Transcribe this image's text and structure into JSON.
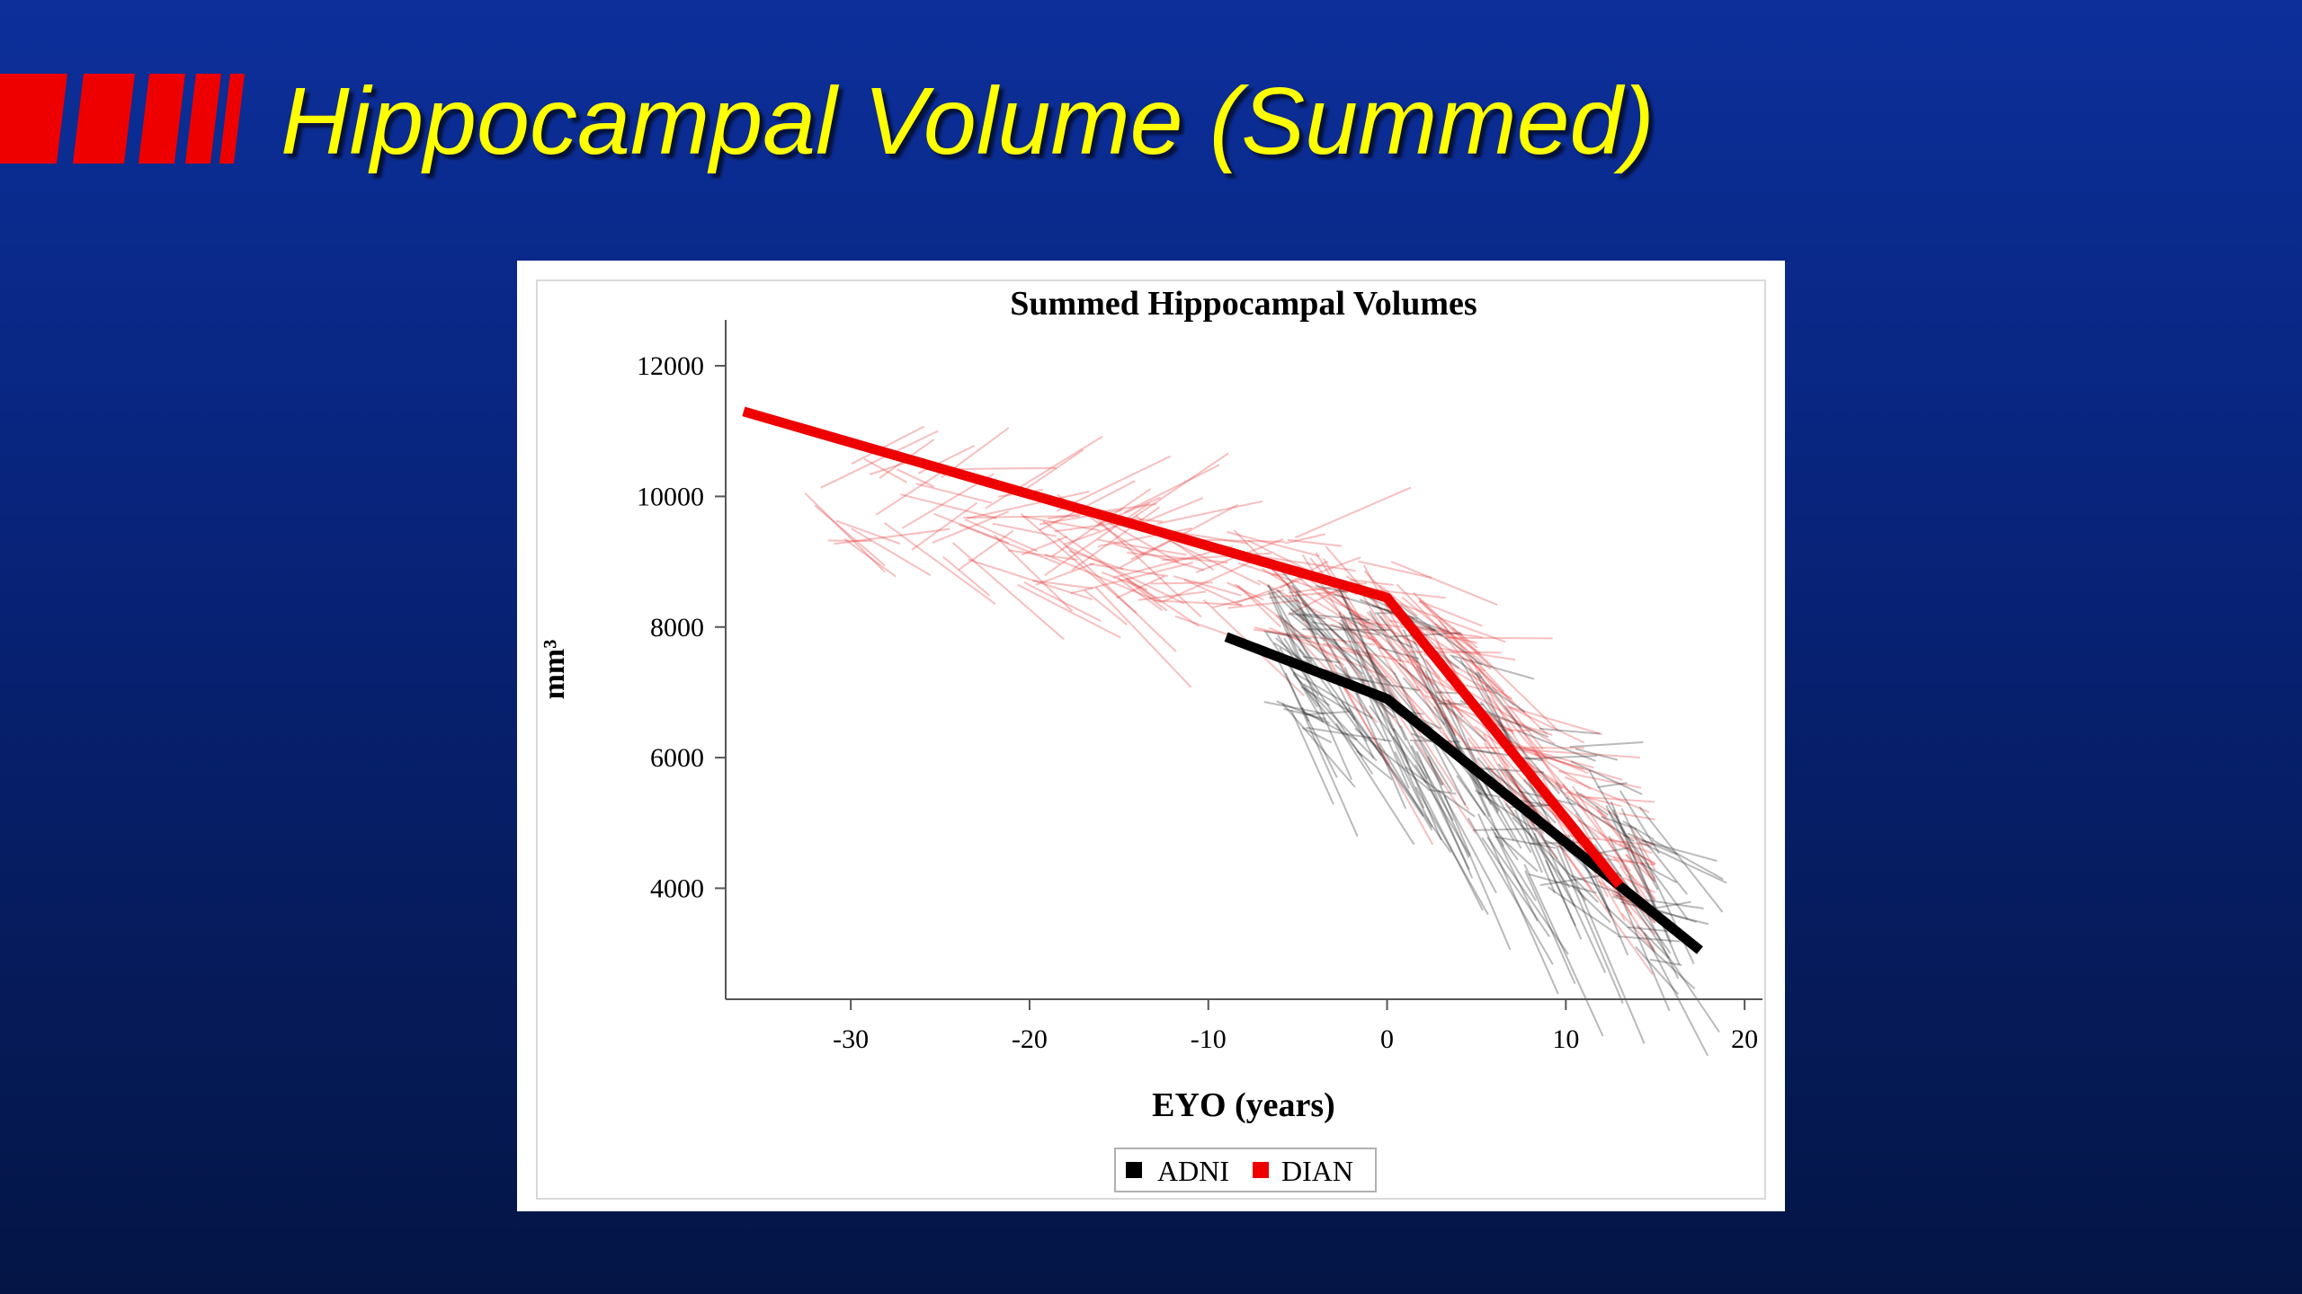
{
  "slide": {
    "title": "Hippocampal Volume (Summed)",
    "title_color": "#ffff00",
    "accent_color": "#ee0000",
    "background_color": "#0a2580"
  },
  "chart_data": {
    "type": "line",
    "title": "Summed Hippocampal Volumes",
    "xlabel": "EYO (years)",
    "ylabel": "mm³",
    "xlim": [
      -37,
      21
    ],
    "ylim": [
      2300,
      12400
    ],
    "x_ticks": [
      -30,
      -20,
      -10,
      0,
      10,
      20
    ],
    "y_ticks": [
      4000,
      6000,
      8000,
      10000,
      12000
    ],
    "x_tick_labels": [
      "-30",
      "-20",
      "-10",
      "0",
      "10",
      "20"
    ],
    "y_tick_labels": [
      "4000",
      "6000",
      "8000",
      "10000",
      "12000"
    ],
    "grid": false,
    "legend_position": "bottom-center",
    "series": [
      {
        "name": "ADNI",
        "color": "#000000",
        "x": [
          -9,
          0,
          17.5
        ],
        "y": [
          7850,
          6900,
          3050
        ],
        "individual_trajectories": "dense gray spaghetti lines, EYO -8 to 16, volumes about 2800 to 10300"
      },
      {
        "name": "DIAN",
        "color": "#ee0000",
        "x": [
          -36,
          0,
          13
        ],
        "y": [
          11300,
          8450,
          4050
        ],
        "individual_trajectories": "faint pink spaghetti lines, EYO -33 to 14, volumes about 4000 to 10500"
      }
    ],
    "legend": [
      {
        "label": "ADNI",
        "color": "#000000"
      },
      {
        "label": "DIAN",
        "color": "#ee0000"
      }
    ]
  }
}
